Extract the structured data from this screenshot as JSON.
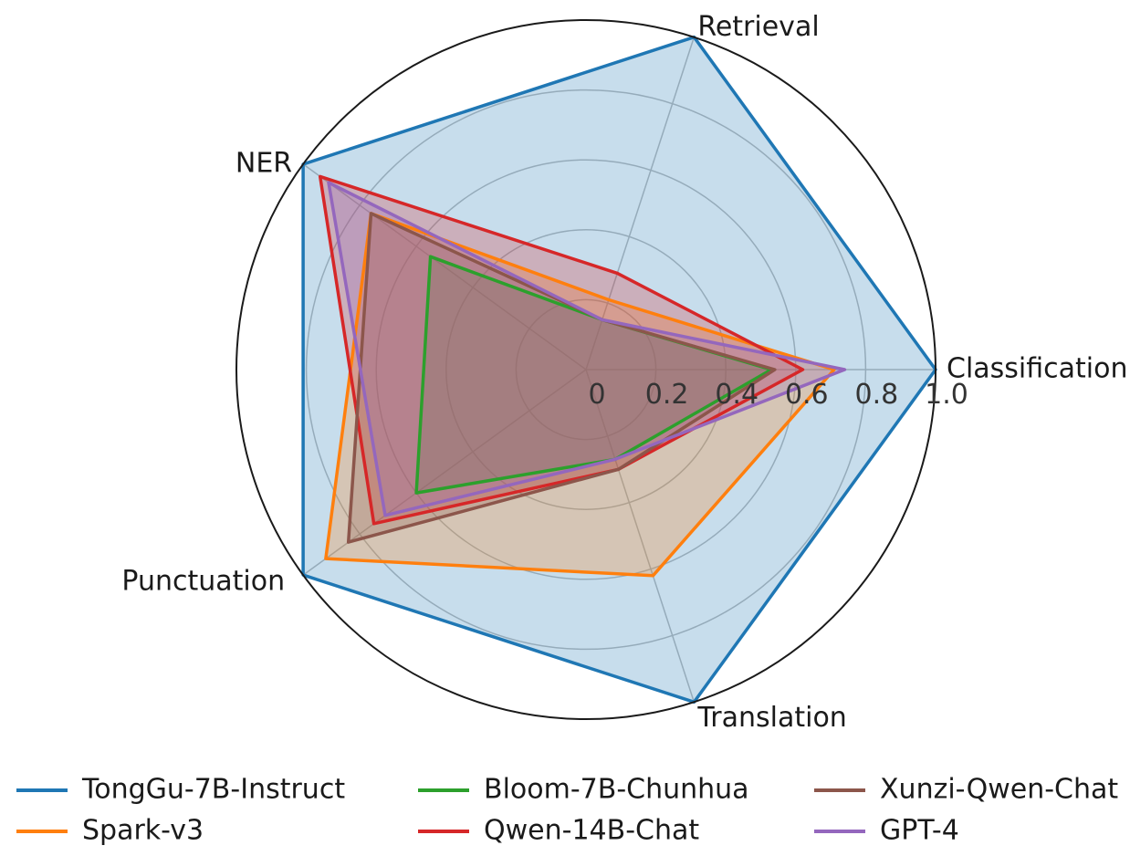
{
  "chart_data": {
    "type": "radar",
    "axes": [
      "Classification",
      "Retrieval",
      "NER",
      "Punctuation",
      "Translation"
    ],
    "rlim": [
      0,
      1.0
    ],
    "ticks": [
      "0",
      "0.2",
      "0.4",
      "0.6",
      "0.8",
      "1.0"
    ],
    "grid": true,
    "legend_position": "bottom",
    "series": [
      {
        "name": "TongGu-7B-Instruct",
        "color": "#1f77b4",
        "values": [
          1.0,
          1.0,
          1.0,
          1.0,
          1.0
        ]
      },
      {
        "name": "Spark-v3",
        "color": "#ff7f0e",
        "values": [
          0.71,
          0.21,
          0.76,
          0.92,
          0.62
        ]
      },
      {
        "name": "Bloom-7B-Chunhua",
        "color": "#2ca02c",
        "values": [
          0.53,
          0.15,
          0.55,
          0.6,
          0.27
        ]
      },
      {
        "name": "Qwen-14B-Chat",
        "color": "#d62728",
        "values": [
          0.62,
          0.29,
          0.94,
          0.75,
          0.3
        ]
      },
      {
        "name": "Xunzi-Qwen-Chat",
        "color": "#8c564b",
        "values": [
          0.54,
          0.15,
          0.76,
          0.84,
          0.3
        ]
      },
      {
        "name": "GPT-4",
        "color": "#9467bd",
        "values": [
          0.74,
          0.15,
          0.91,
          0.71,
          0.27
        ]
      }
    ]
  }
}
